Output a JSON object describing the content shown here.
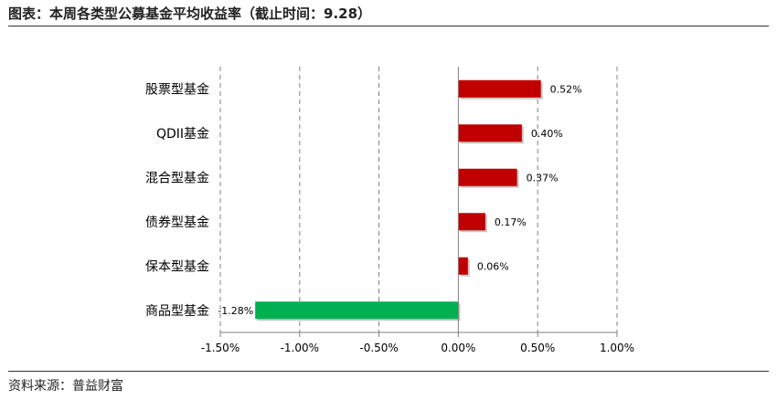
{
  "header": {
    "title": "图表：本周各类型公募基金平均收益率（截止时间：9.28）"
  },
  "footer": {
    "source": "资料来源：普益财富"
  },
  "chart_data": {
    "type": "bar",
    "orientation": "horizontal",
    "categories": [
      "股票型基金",
      "QDII基金",
      "混合型基金",
      "债券型基金",
      "保本型基金",
      "商品型基金"
    ],
    "values": [
      0.52,
      0.4,
      0.37,
      0.17,
      0.06,
      -1.28
    ],
    "value_labels": [
      "0.52%",
      "0.40%",
      "0.37%",
      "0.17%",
      "0.06%",
      "-1.28%"
    ],
    "xlim": [
      -1.5,
      1.0
    ],
    "xticks": [
      -1.5,
      -1.0,
      -0.5,
      0.0,
      0.5,
      1.0
    ],
    "xtick_labels": [
      "-1.50%",
      "-1.00%",
      "-0.50%",
      "0.00%",
      "0.50%",
      "1.00%"
    ],
    "grid": "vertical dashed",
    "colors": {
      "positive": "#c00000",
      "negative": "#00b050",
      "grid": "#808080"
    }
  }
}
